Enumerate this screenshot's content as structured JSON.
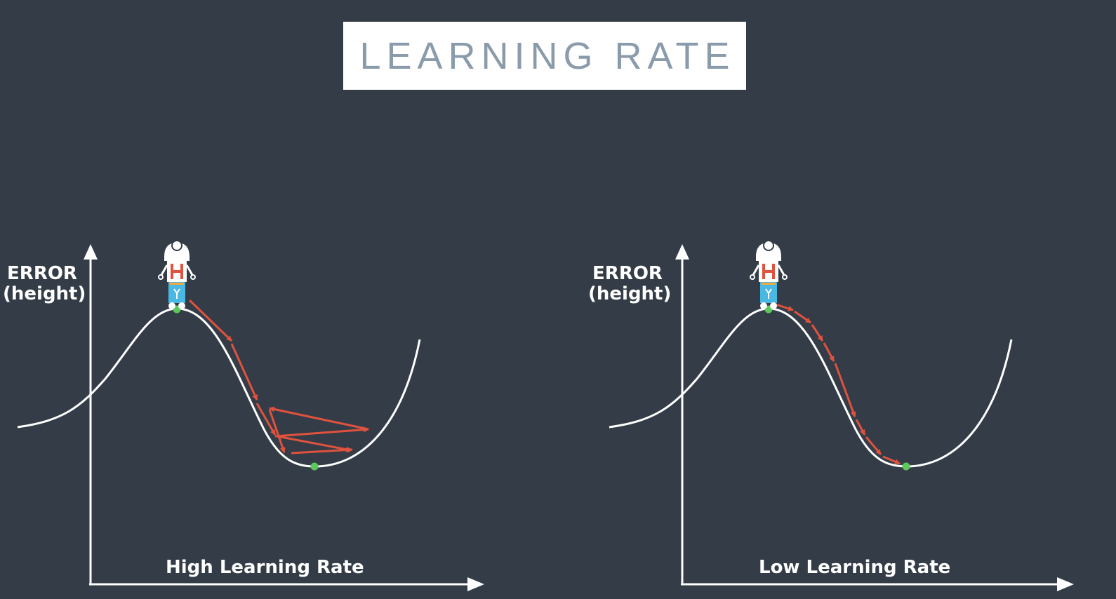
{
  "title": "LEARNING RATE",
  "panels": [
    {
      "id": "high",
      "ylabel_line1": "ERROR",
      "ylabel_line2": "(height)",
      "xlabel": "High Learning Rate"
    },
    {
      "id": "low",
      "ylabel_line1": "ERROR",
      "ylabel_line2": "(height)",
      "xlabel": "Low Learning Rate"
    }
  ],
  "colors": {
    "background": "#333c47",
    "curve": "#ffffff",
    "arrows": "#e0523e",
    "start_end_points": "#5cc85a",
    "robot_body": "#49b8e3",
    "title_text": "#8a9bab"
  },
  "icons": [
    "robot-icon",
    "arrow-icon"
  ]
}
